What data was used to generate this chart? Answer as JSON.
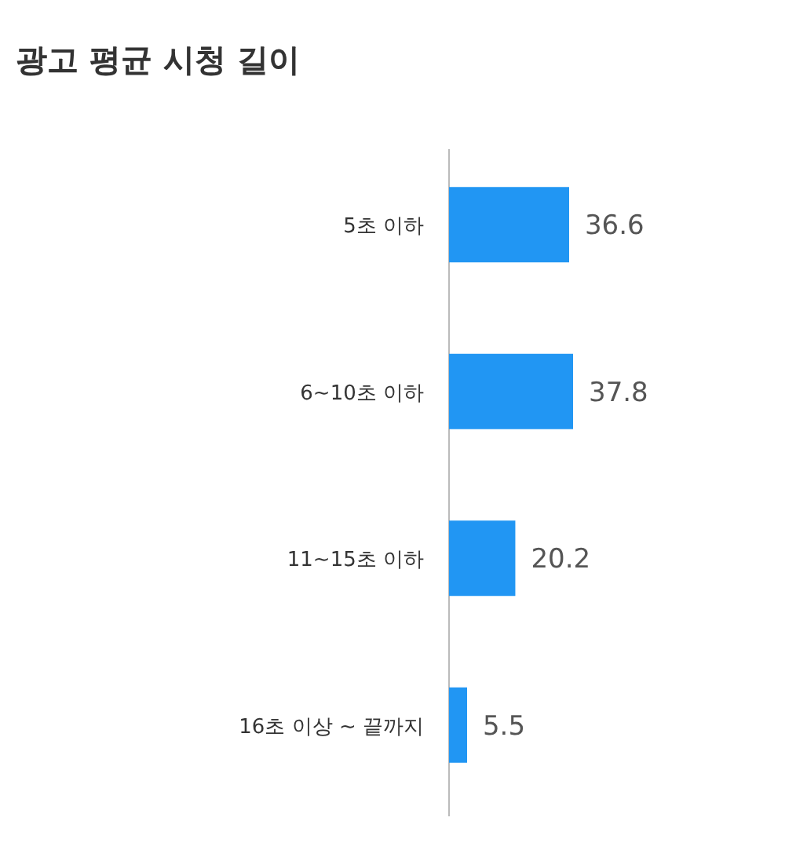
{
  "chart_data": {
    "type": "bar",
    "orientation": "horizontal",
    "title": "광고 평균 시청 길이",
    "categories": [
      "5초 이하",
      "6~10초 이하",
      "11~15초 이하",
      "16초 이상 ~ 끝까지"
    ],
    "values": [
      36.6,
      37.8,
      20.2,
      5.5
    ],
    "color": "#2196f3",
    "data_labels": true
  }
}
